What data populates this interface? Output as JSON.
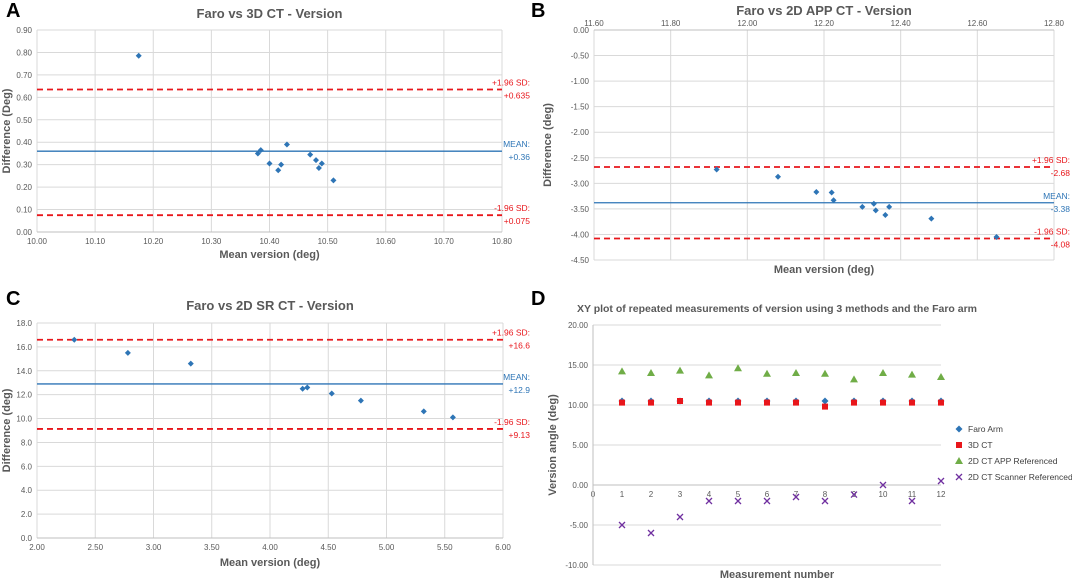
{
  "chart_data": [
    {
      "panel": "A",
      "type": "scatter",
      "title": "Faro vs 3D CT - Version",
      "xlabel": "Mean version (deg)",
      "ylabel": "Difference (Deg)",
      "xlim": [
        10.0,
        10.8
      ],
      "ylim": [
        0.0,
        0.9
      ],
      "xticks": [
        "10.00",
        "10.10",
        "10.20",
        "10.30",
        "10.40",
        "10.50",
        "10.60",
        "10.70",
        "10.80"
      ],
      "yticks": [
        "0.00",
        "0.10",
        "0.20",
        "0.30",
        "0.40",
        "0.50",
        "0.60",
        "0.70",
        "0.80",
        "0.90"
      ],
      "points": [
        [
          10.175,
          0.785
        ],
        [
          10.38,
          0.35
        ],
        [
          10.385,
          0.365
        ],
        [
          10.4,
          0.305
        ],
        [
          10.415,
          0.275
        ],
        [
          10.42,
          0.3
        ],
        [
          10.43,
          0.39
        ],
        [
          10.47,
          0.345
        ],
        [
          10.48,
          0.32
        ],
        [
          10.485,
          0.285
        ],
        [
          10.49,
          0.305
        ],
        [
          10.51,
          0.23
        ]
      ],
      "lines": [
        {
          "kind": "upper",
          "value": 0.635,
          "label1": "+1.96 SD:",
          "label2": "+0.635"
        },
        {
          "kind": "mean",
          "value": 0.36,
          "label1": "MEAN:",
          "label2": "+0.36"
        },
        {
          "kind": "lower",
          "value": 0.075,
          "label1": "-1.96 SD:",
          "label2": "+0.075"
        }
      ]
    },
    {
      "panel": "B",
      "type": "scatter",
      "title": "Faro vs 2D APP CT - Version",
      "xlabel": "Mean version (deg)",
      "ylabel": "Difference (deg)",
      "xlim": [
        11.6,
        12.8
      ],
      "ylim": [
        -4.5,
        0.0
      ],
      "xaxis_top": true,
      "xticks": [
        "11.60",
        "11.80",
        "12.00",
        "12.20",
        "12.40",
        "12.60",
        "12.80"
      ],
      "yticks": [
        "0.00",
        "-0.50",
        "-1.00",
        "-1.50",
        "-2.00",
        "-2.50",
        "-3.00",
        "-3.50",
        "-4.00",
        "-4.50"
      ],
      "points": [
        [
          11.92,
          -2.73
        ],
        [
          12.08,
          -2.87
        ],
        [
          12.18,
          -3.17
        ],
        [
          12.22,
          -3.18
        ],
        [
          12.225,
          -3.33
        ],
        [
          12.3,
          -3.46
        ],
        [
          12.33,
          -3.4
        ],
        [
          12.335,
          -3.53
        ],
        [
          12.36,
          -3.62
        ],
        [
          12.37,
          -3.46
        ],
        [
          12.48,
          -3.69
        ],
        [
          12.65,
          -4.05
        ]
      ],
      "lines": [
        {
          "kind": "upper",
          "value": -2.68,
          "label1": "+1.96 SD:",
          "label2": "-2.68"
        },
        {
          "kind": "mean",
          "value": -3.38,
          "label1": "MEAN:",
          "label2": "-3.38"
        },
        {
          "kind": "lower",
          "value": -4.08,
          "label1": "-1.96 SD:",
          "label2": "-4.08"
        }
      ]
    },
    {
      "panel": "C",
      "type": "scatter",
      "title": "Faro vs 2D SR CT - Version",
      "xlabel": "Mean version (deg)",
      "ylabel": "Difference (deg)",
      "xlim": [
        2.0,
        6.0
      ],
      "ylim": [
        0.0,
        18.0
      ],
      "xticks": [
        "2.00",
        "2.50",
        "3.00",
        "3.50",
        "4.00",
        "4.50",
        "5.00",
        "5.50",
        "6.00"
      ],
      "yticks": [
        "0.0",
        "2.0",
        "4.0",
        "6.0",
        "8.0",
        "10.0",
        "12.0",
        "14.0",
        "16.0",
        "18.0"
      ],
      "points": [
        [
          2.32,
          16.6
        ],
        [
          2.78,
          15.5
        ],
        [
          3.32,
          14.6
        ],
        [
          4.28,
          12.5
        ],
        [
          4.32,
          12.6
        ],
        [
          4.53,
          12.1
        ],
        [
          4.78,
          11.5
        ],
        [
          5.32,
          10.6
        ],
        [
          5.57,
          10.1
        ]
      ],
      "lines": [
        {
          "kind": "upper",
          "value": 16.6,
          "label1": "+1.96 SD:",
          "label2": "+16.6"
        },
        {
          "kind": "mean",
          "value": 12.9,
          "label1": "MEAN:",
          "label2": "+12.9"
        },
        {
          "kind": "lower",
          "value": 9.13,
          "label1": "-1.96 SD:",
          "label2": "+9.13"
        }
      ]
    },
    {
      "panel": "D",
      "type": "scatter",
      "title": "XY plot of repeated measurements of version using 3 methods and the Faro arm",
      "xlabel": "Measurement number",
      "ylabel": "Version angle (deg)",
      "xlim": [
        0,
        12
      ],
      "ylim": [
        -10,
        20
      ],
      "xticks": [
        "0",
        "1",
        "2",
        "3",
        "4",
        "5",
        "6",
        "7",
        "8",
        "9",
        "10",
        "11",
        "12"
      ],
      "yticks": [
        "20.00",
        "15.00",
        "10.00",
        "5.00",
        "0.00",
        "-5.00",
        "-10.00"
      ],
      "series": [
        {
          "name": "Faro Arm",
          "marker": "diamond",
          "color": "#2e75b6",
          "x": [
            1,
            2,
            3,
            4,
            5,
            6,
            7,
            8,
            9,
            10,
            11,
            12
          ],
          "y": [
            10.5,
            10.5,
            10.5,
            10.5,
            10.5,
            10.5,
            10.5,
            10.5,
            10.5,
            10.5,
            10.5,
            10.5
          ]
        },
        {
          "name": "3D CT",
          "marker": "square",
          "color": "#e8161b",
          "x": [
            1,
            2,
            3,
            4,
            5,
            6,
            7,
            8,
            9,
            10,
            11,
            12
          ],
          "y": [
            10.3,
            10.3,
            10.5,
            10.3,
            10.3,
            10.3,
            10.3,
            9.8,
            10.3,
            10.3,
            10.3,
            10.3
          ]
        },
        {
          "name": "2D CT APP Referenced",
          "marker": "triangle",
          "color": "#70ad47",
          "x": [
            1,
            2,
            3,
            4,
            5,
            6,
            7,
            8,
            9,
            10,
            11,
            12
          ],
          "y": [
            14.2,
            14.0,
            14.3,
            13.7,
            14.6,
            13.9,
            14.0,
            13.9,
            13.2,
            14.0,
            13.8,
            13.5
          ]
        },
        {
          "name": "2D CT Scanner Referenced",
          "marker": "x",
          "color": "#7030a0",
          "x": [
            1,
            2,
            3,
            4,
            5,
            6,
            7,
            8,
            9,
            10,
            11,
            12
          ],
          "y": [
            -5.0,
            -6.0,
            -4.0,
            -2.0,
            -2.0,
            -2.0,
            -1.5,
            -2.0,
            -1.2,
            0.0,
            -2.0,
            0.5
          ]
        }
      ]
    }
  ],
  "colors": {
    "point": "#2e75b6",
    "mean_line": "#2e75b6",
    "sd_line": "#e8161b",
    "grid": "#d9d9d9",
    "title": "#595959",
    "tick": "#595959"
  }
}
